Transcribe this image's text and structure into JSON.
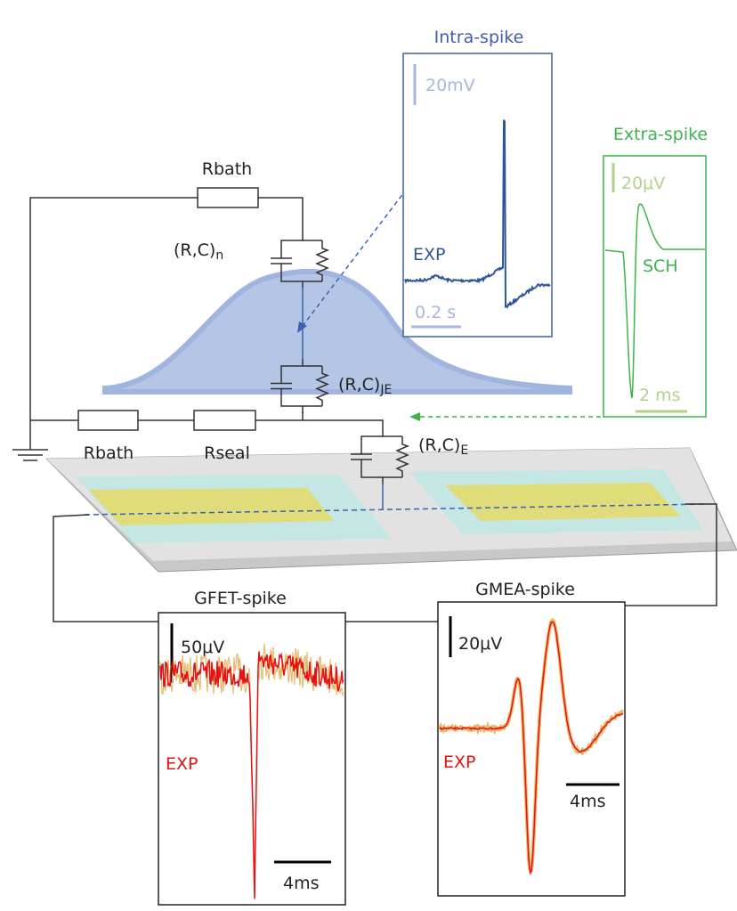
{
  "intra_panel": {
    "title": "Intra-spike",
    "scale_y": "20mV",
    "trace_label": "EXP",
    "scale_x": "0.2 s"
  },
  "extra_panel": {
    "title": "Extra-spike",
    "scale_y": "20μV",
    "trace_label": "SCH",
    "scale_x": "2 ms"
  },
  "circuit": {
    "rbath_top": "Rbath",
    "rc_n": {
      "label": "(R,C)",
      "sub": "n"
    },
    "rc_je": {
      "label": "(R,C)",
      "sub": "JE"
    },
    "rc_e": {
      "label": "(R,C)",
      "sub": "E"
    },
    "rbath_bottom": "Rbath",
    "rseal": "Rseal"
  },
  "gfet_panel": {
    "title": "GFET-spike",
    "scale_y": "50μV",
    "trace_label": "EXP",
    "scale_x": "4ms"
  },
  "gmea_panel": {
    "title": "GMEA-spike",
    "scale_y": "20μV",
    "trace_label": "EXP",
    "scale_x": "4ms"
  }
}
